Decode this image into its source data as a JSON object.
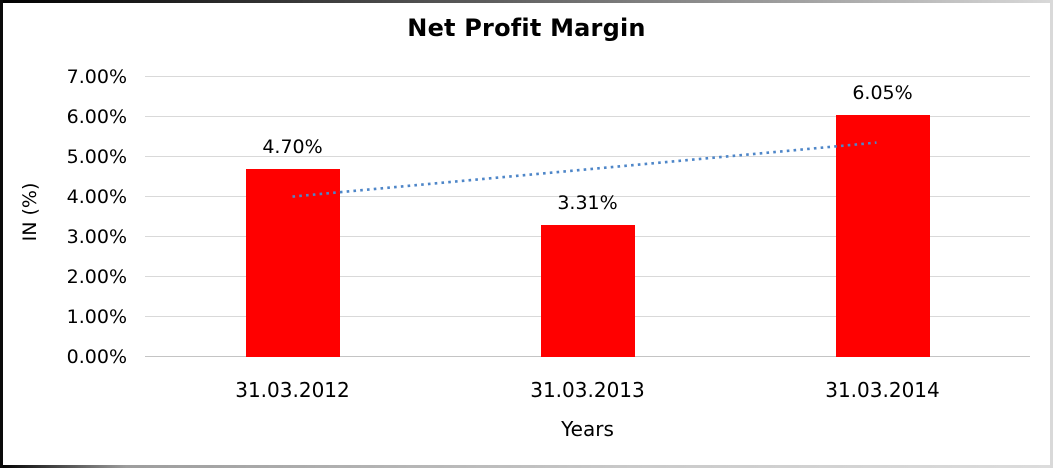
{
  "chart_data": {
    "type": "bar",
    "title": "Net Profit Margin",
    "categories": [
      "31.03.2012",
      "31.03.2013",
      "31.03.2014"
    ],
    "values": [
      4.7,
      3.31,
      6.05
    ],
    "data_labels": [
      "4.70%",
      "3.31%",
      "6.05%"
    ],
    "xlabel": "Years",
    "ylabel": "IN (%)",
    "ylim": [
      0,
      7
    ],
    "yticks": [
      0,
      1,
      2,
      3,
      4,
      5,
      6,
      7
    ],
    "ytick_labels": [
      "0.00%",
      "1.00%",
      "2.00%",
      "3.00%",
      "4.00%",
      "5.00%",
      "6.00%",
      "7.00%"
    ],
    "grid": true,
    "legend": "none",
    "bar_color": "#ff0000",
    "gridline_color": "#d9d9d9",
    "trendline": {
      "type": "linear",
      "style": "dotted",
      "color": "#4e86c8",
      "start_value": 4.01,
      "end_value": 5.36
    }
  }
}
